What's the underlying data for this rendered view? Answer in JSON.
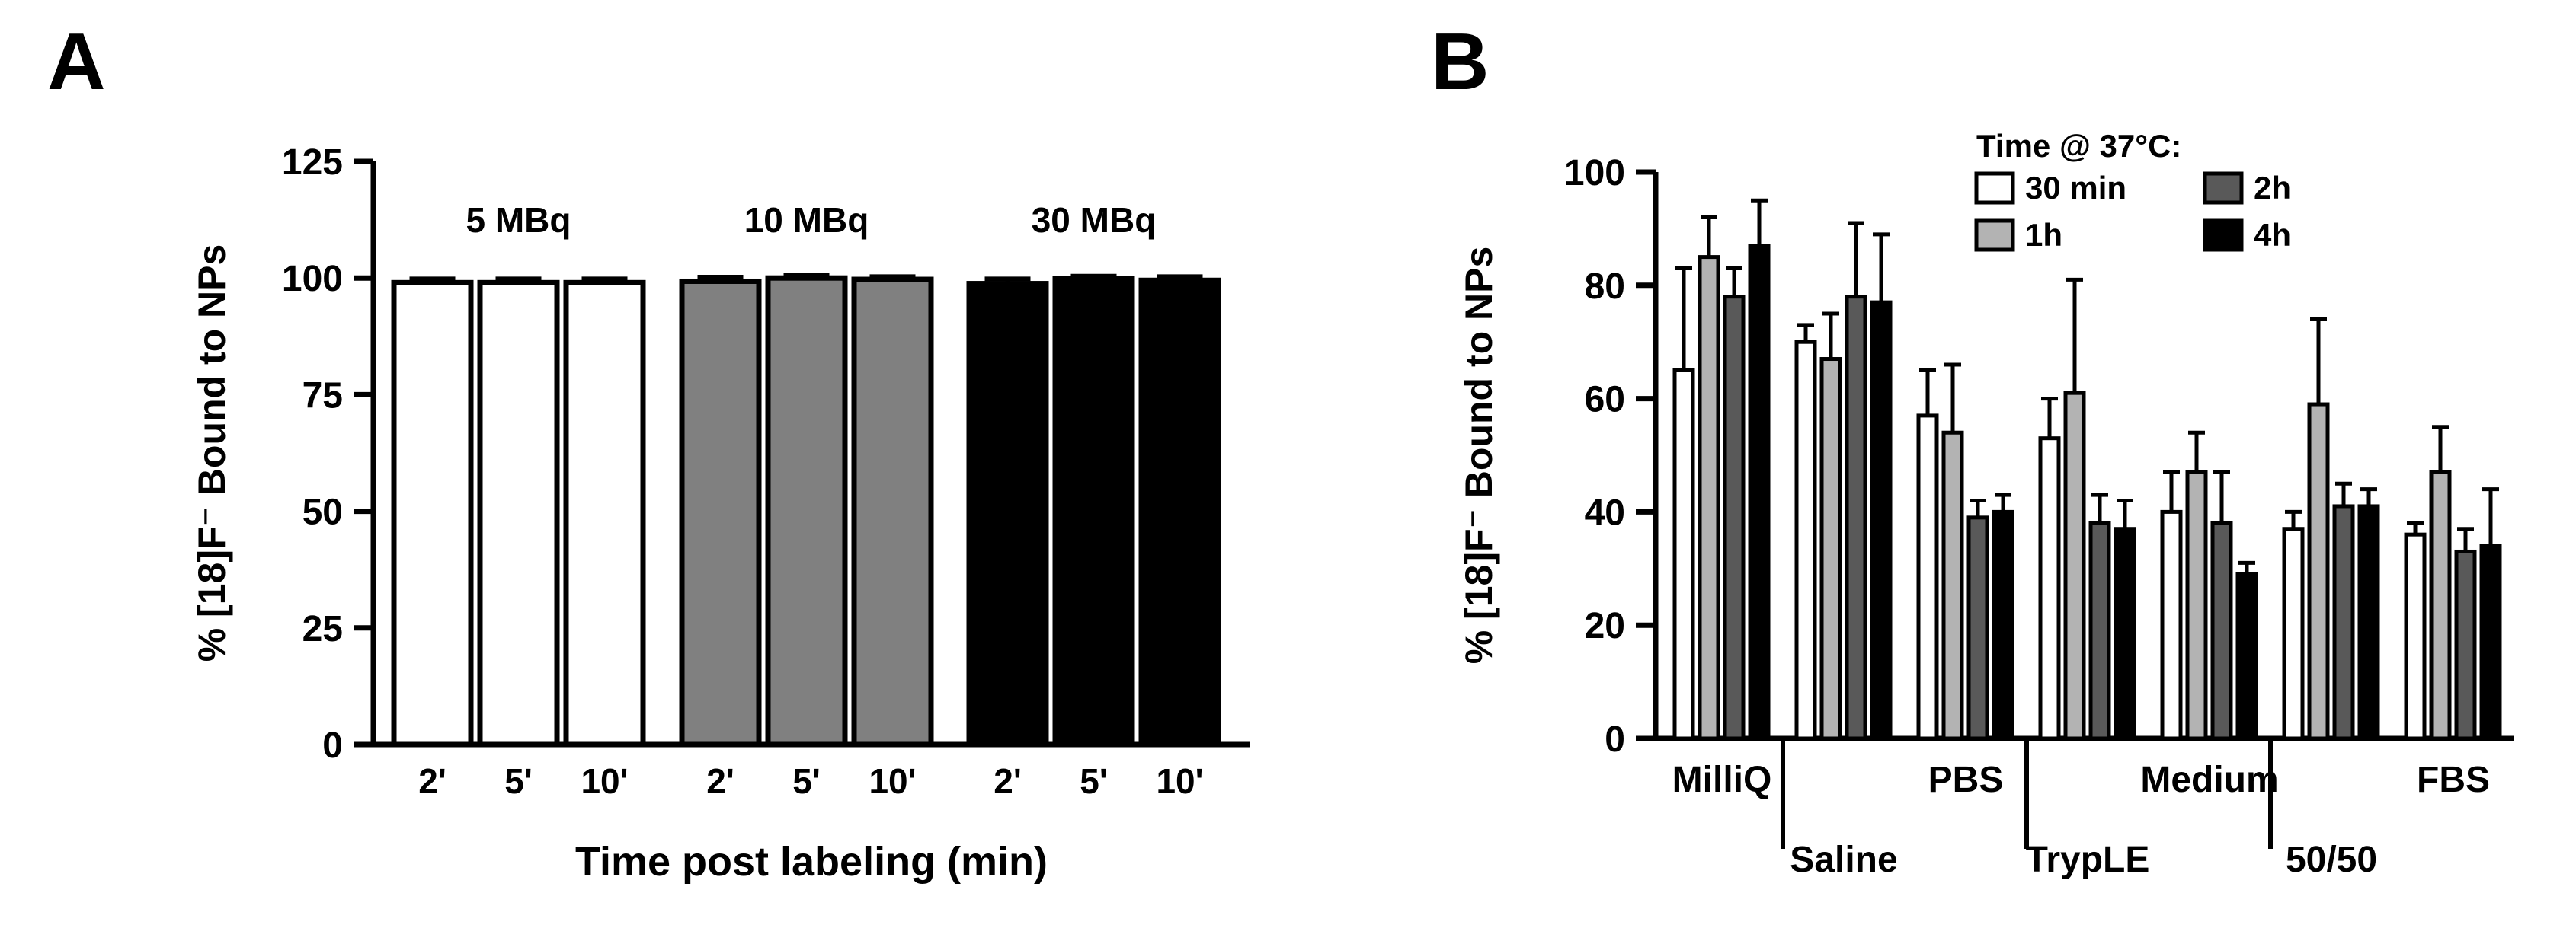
{
  "figure": {
    "panel_a_label": "A",
    "panel_b_label": "B"
  },
  "chart_data": [
    {
      "type": "bar",
      "panel": "A",
      "title": "",
      "ylabel": "% [18]F⁻ Bound to NPs",
      "xlabel": "Time post labeling (min)",
      "ylim": [
        0,
        125
      ],
      "yticks": [
        0,
        25,
        50,
        75,
        100,
        125
      ],
      "grid": false,
      "groups": [
        {
          "label": "5 MBq",
          "color": "#ffffff",
          "bars": [
            {
              "x": "2'",
              "value": 99,
              "error": 0.8
            },
            {
              "x": "5'",
              "value": 99,
              "error": 0.8
            },
            {
              "x": "10'",
              "value": 99,
              "error": 0.8
            }
          ]
        },
        {
          "label": "10 MBq",
          "color": "#808080",
          "bars": [
            {
              "x": "2'",
              "value": 99.3,
              "error": 0.9
            },
            {
              "x": "5'",
              "value": 100,
              "error": 0.6
            },
            {
              "x": "10'",
              "value": 99.7,
              "error": 0.6
            }
          ]
        },
        {
          "label": "30 MBq",
          "color": "#000000",
          "bars": [
            {
              "x": "2'",
              "value": 98.8,
              "error": 1.0
            },
            {
              "x": "5'",
              "value": 99.8,
              "error": 0.6
            },
            {
              "x": "10'",
              "value": 99.5,
              "error": 0.8
            }
          ]
        }
      ]
    },
    {
      "type": "bar",
      "panel": "B",
      "title": "",
      "ylabel": "% [18]F⁻ Bound to NPs",
      "xlabel": "",
      "ylim": [
        0,
        100
      ],
      "yticks": [
        0,
        20,
        40,
        60,
        80,
        100
      ],
      "grid": false,
      "legend_title": "Time @ 37°C:",
      "legend_position": "top-right",
      "series": [
        {
          "name": "30 min",
          "color": "#ffffff"
        },
        {
          "name": "1h",
          "color": "#b3b3b3"
        },
        {
          "name": "2h",
          "color": "#595959"
        },
        {
          "name": "4h",
          "color": "#000000"
        }
      ],
      "categories": [
        "MilliQ",
        "Saline",
        "PBS",
        "TrypLE",
        "Medium",
        "50/50",
        "FBS"
      ],
      "values": [
        [
          65,
          85,
          78,
          87
        ],
        [
          70,
          67,
          78,
          77
        ],
        [
          57,
          54,
          39,
          40
        ],
        [
          53,
          61,
          38,
          37
        ],
        [
          40,
          47,
          38,
          29
        ],
        [
          37,
          59,
          41,
          41
        ],
        [
          36,
          47,
          33,
          34
        ]
      ],
      "errors": [
        [
          18,
          7,
          5,
          8
        ],
        [
          3,
          8,
          13,
          12
        ],
        [
          8,
          12,
          3,
          3
        ],
        [
          7,
          20,
          5,
          5
        ],
        [
          7,
          7,
          9,
          2
        ],
        [
          3,
          15,
          4,
          3
        ],
        [
          2,
          8,
          4,
          10
        ]
      ]
    }
  ]
}
